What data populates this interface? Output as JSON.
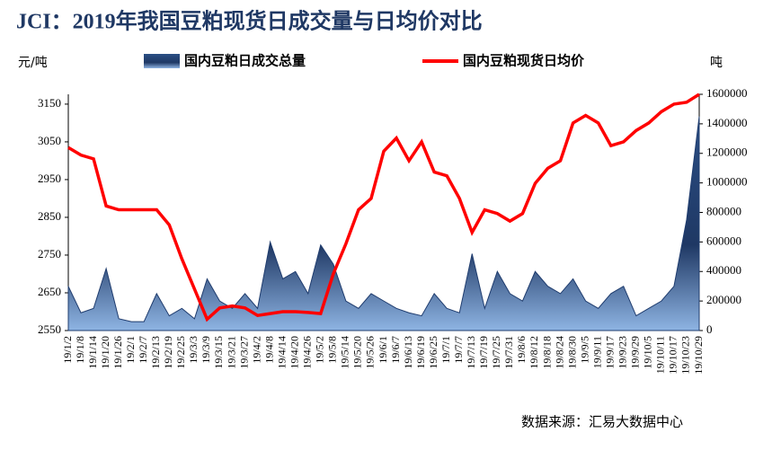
{
  "chart_data": {
    "type": "combo",
    "title": "JCI：2019年我国豆粕现货日成交量与日均价对比",
    "y_label": "元/吨",
    "y2_label": "吨",
    "source": "数据来源：汇易大数据中心",
    "categories": [
      "19/1/2",
      "19/1/8",
      "19/1/14",
      "19/1/20",
      "19/1/26",
      "19/2/1",
      "19/2/7",
      "19/2/13",
      "19/2/19",
      "19/2/25",
      "19/3/3",
      "19/3/9",
      "19/3/15",
      "19/3/21",
      "19/3/27",
      "19/4/2",
      "19/4/8",
      "19/4/14",
      "19/4/20",
      "19/4/26",
      "19/5/2",
      "19/5/8",
      "19/5/14",
      "19/5/20",
      "19/5/26",
      "19/6/1",
      "19/6/7",
      "19/6/13",
      "19/6/19",
      "19/6/25",
      "19/7/1",
      "19/7/7",
      "19/7/13",
      "19/7/19",
      "19/7/25",
      "19/7/31",
      "19/8/6",
      "19/8/12",
      "19/8/18",
      "19/8/24",
      "19/8/30",
      "19/9/5",
      "19/9/11",
      "19/9/17",
      "19/9/23",
      "19/9/29",
      "19/10/5",
      "19/10/11",
      "19/10/17",
      "19/10/23",
      "19/10/29"
    ],
    "series": [
      {
        "name": "国内豆粕日成交总量",
        "color": "#1f3c6e",
        "axis": "y2",
        "kind": "area",
        "values": [
          300000,
          120000,
          150000,
          420000,
          80000,
          60000,
          60000,
          250000,
          100000,
          150000,
          80000,
          350000,
          200000,
          150000,
          250000,
          150000,
          600000,
          350000,
          400000,
          250000,
          580000,
          450000,
          200000,
          150000,
          250000,
          200000,
          150000,
          120000,
          100000,
          250000,
          150000,
          120000,
          520000,
          150000,
          400000,
          250000,
          200000,
          400000,
          300000,
          250000,
          350000,
          200000,
          150000,
          250000,
          300000,
          100000,
          150000,
          200000,
          300000,
          750000,
          1450000
        ]
      },
      {
        "name": "国内豆粕现货日均价",
        "color": "#ff0000",
        "axis": "y",
        "kind": "line",
        "values": [
          3035,
          3015,
          3005,
          2880,
          2870,
          2870,
          2870,
          2870,
          2830,
          2740,
          2660,
          2580,
          2610,
          2615,
          2610,
          2590,
          2595,
          2600,
          2600,
          2598,
          2595,
          2700,
          2780,
          2870,
          2900,
          3025,
          3060,
          3000,
          3050,
          2970,
          2960,
          2900,
          2810,
          2870,
          2860,
          2840,
          2860,
          2940,
          2980,
          3000,
          3100,
          3120,
          3100,
          3040,
          3050,
          3080,
          3100,
          3130,
          3150,
          3155,
          3176
        ]
      }
    ],
    "ylim": [
      2550,
      3176
    ],
    "yticks": [
      2550,
      2650,
      2750,
      2850,
      2950,
      3050,
      3150
    ],
    "y2lim": [
      0,
      1600000
    ],
    "y2ticks": [
      0,
      200000,
      400000,
      600000,
      800000,
      1000000,
      1200000,
      1400000,
      1600000
    ]
  }
}
